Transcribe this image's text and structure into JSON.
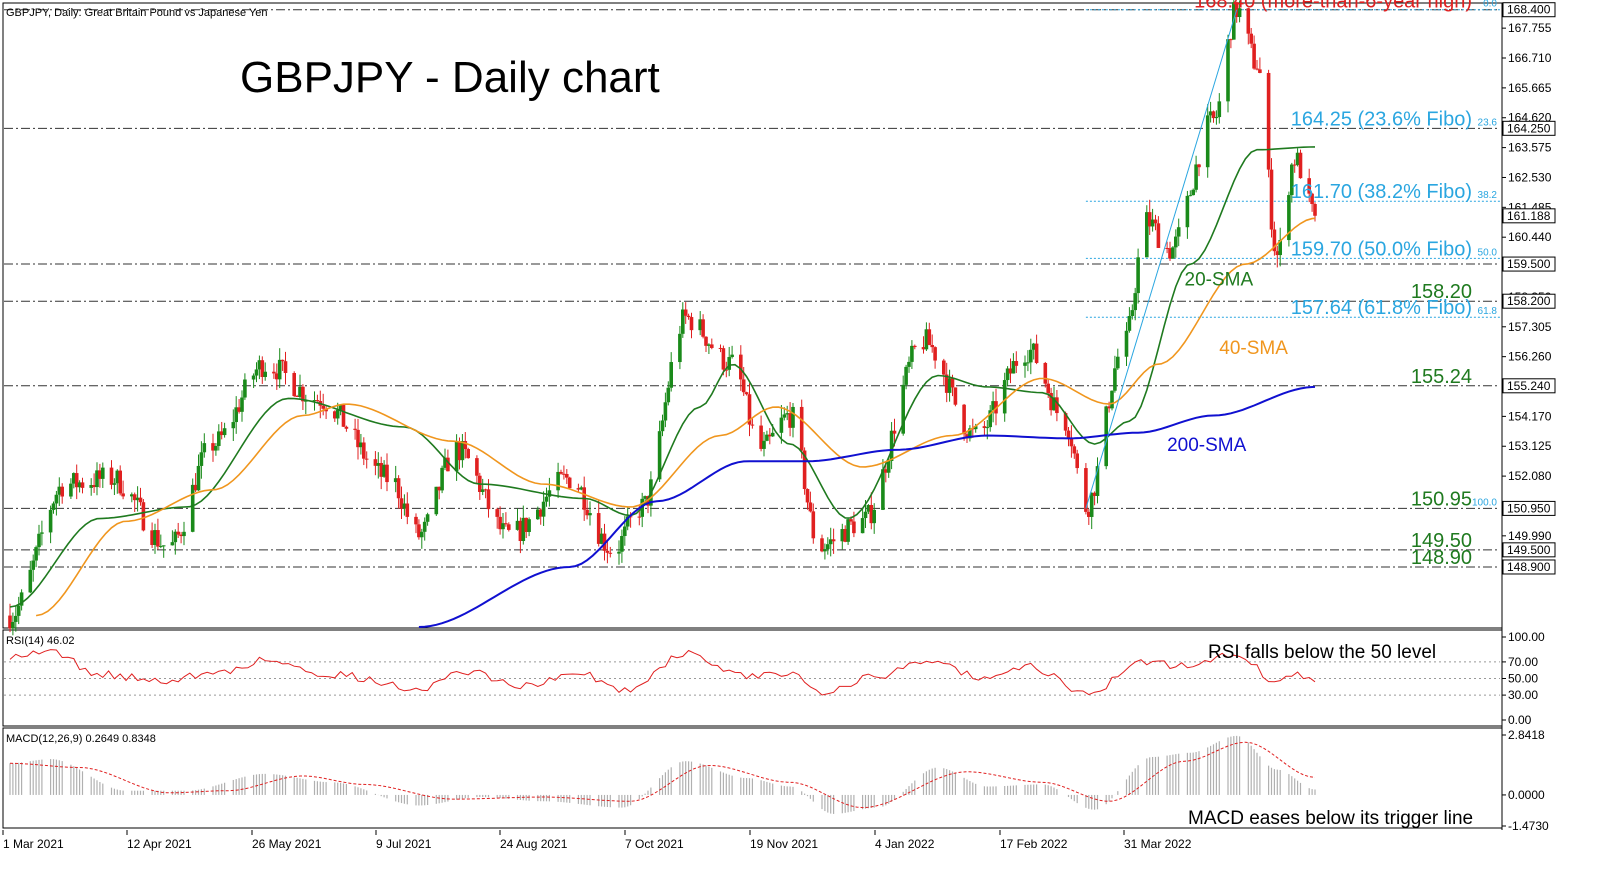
{
  "header": {
    "instrument_caption": "GBPJPY, Daily:  Great Britain Pound vs Japanese Yen",
    "chart_title": "GBPJPY - Daily chart"
  },
  "colors": {
    "bull": "#1a8a1a",
    "bear": "#e02020",
    "sma20": "#1f7a1f",
    "sma40": "#f0961e",
    "sma200": "#1010d0",
    "fibo": "#2aa6e0",
    "resistance_label": "#e02020",
    "support_label": "#1f7a1f",
    "rsi_line": "#e02020",
    "macd_hist": "#b0b0b0",
    "macd_signal": "#e02020"
  },
  "chart_data": [
    {
      "type": "candlestick",
      "title": "GBPJPY - Daily chart",
      "ylim": [
        146.8,
        168.6
      ],
      "price_ticks": [
        "167.755",
        "166.710",
        "165.665",
        "164.620",
        "163.575",
        "162.530",
        "161.485",
        "160.440",
        "159.395",
        "158.350",
        "157.305",
        "156.260",
        "155.215",
        "154.170",
        "153.125",
        "152.080",
        "151.035",
        "149.990",
        "148.945"
      ],
      "x_dates": [
        "1 Mar 2021",
        "12 Apr 2021",
        "26 May 2021",
        "9 Jul 2021",
        "24 Aug 2021",
        "7 Oct 2021",
        "19 Nov 2021",
        "4 Jan 2022",
        "17 Feb 2022",
        "31 Mar 2022"
      ],
      "close_keypoints": [
        {
          "date": "2021-03-01",
          "value": 147.2
        },
        {
          "date": "2021-03-20",
          "value": 151.8
        },
        {
          "date": "2021-04-05",
          "value": 152.0
        },
        {
          "date": "2021-04-25",
          "value": 149.6
        },
        {
          "date": "2021-05-10",
          "value": 153.2
        },
        {
          "date": "2021-05-28",
          "value": 156.0
        },
        {
          "date": "2021-06-15",
          "value": 154.8
        },
        {
          "date": "2021-07-10",
          "value": 152.0
        },
        {
          "date": "2021-07-20",
          "value": 150.0
        },
        {
          "date": "2021-08-02",
          "value": 153.0
        },
        {
          "date": "2021-08-20",
          "value": 150.0
        },
        {
          "date": "2021-09-10",
          "value": 152.0
        },
        {
          "date": "2021-09-25",
          "value": 149.5
        },
        {
          "date": "2021-10-05",
          "value": 151.0
        },
        {
          "date": "2021-10-20",
          "value": 157.6
        },
        {
          "date": "2021-11-05",
          "value": 156.0
        },
        {
          "date": "2021-11-15",
          "value": 153.0
        },
        {
          "date": "2021-11-25",
          "value": 154.2
        },
        {
          "date": "2021-12-05",
          "value": 149.6
        },
        {
          "date": "2021-12-20",
          "value": 150.5
        },
        {
          "date": "2022-01-10",
          "value": 156.8
        },
        {
          "date": "2022-01-28",
          "value": 153.5
        },
        {
          "date": "2022-02-15",
          "value": 156.5
        },
        {
          "date": "2022-02-28",
          "value": 154.0
        },
        {
          "date": "2022-03-07",
          "value": 151.0
        },
        {
          "date": "2022-03-20",
          "value": 156.6
        },
        {
          "date": "2022-03-28",
          "value": 161.0
        },
        {
          "date": "2022-04-05",
          "value": 160.0
        },
        {
          "date": "2022-04-20",
          "value": 164.5
        },
        {
          "date": "2022-04-28",
          "value": 168.4
        },
        {
          "date": "2022-05-05",
          "value": 166.5
        },
        {
          "date": "2022-05-12",
          "value": 159.8
        },
        {
          "date": "2022-05-18",
          "value": 163.2
        },
        {
          "date": "2022-05-25",
          "value": 161.19
        }
      ],
      "sma_series": [
        {
          "name": "20-SMA",
          "points": [
            {
              "date": "2021-03-01",
              "value": 147.5
            },
            {
              "date": "2021-04-01",
              "value": 150.6
            },
            {
              "date": "2021-05-01",
              "value": 151.0
            },
            {
              "date": "2021-06-05",
              "value": 154.8
            },
            {
              "date": "2021-07-15",
              "value": 153.8
            },
            {
              "date": "2021-08-10",
              "value": 151.8
            },
            {
              "date": "2021-09-15",
              "value": 151.3
            },
            {
              "date": "2021-10-01",
              "value": 150.7
            },
            {
              "date": "2021-10-25",
              "value": 154.5
            },
            {
              "date": "2021-11-05",
              "value": 156.0
            },
            {
              "date": "2021-11-25",
              "value": 153.2
            },
            {
              "date": "2021-12-15",
              "value": 150.6
            },
            {
              "date": "2022-01-15",
              "value": 155.6
            },
            {
              "date": "2022-02-01",
              "value": 155.2
            },
            {
              "date": "2022-02-20",
              "value": 155.0
            },
            {
              "date": "2022-03-10",
              "value": 153.2
            },
            {
              "date": "2022-03-22",
              "value": 154.0
            },
            {
              "date": "2022-04-12",
              "value": 159.5
            },
            {
              "date": "2022-05-05",
              "value": 163.5
            },
            {
              "date": "2022-05-25",
              "value": 163.6
            }
          ]
        },
        {
          "name": "40-SMA",
          "points": [
            {
              "date": "2021-03-10",
              "value": 147.2
            },
            {
              "date": "2021-04-10",
              "value": 150.5
            },
            {
              "date": "2021-05-10",
              "value": 151.6
            },
            {
              "date": "2021-06-10",
              "value": 154.2
            },
            {
              "date": "2021-06-25",
              "value": 154.6
            },
            {
              "date": "2021-08-01",
              "value": 153.3
            },
            {
              "date": "2021-09-01",
              "value": 151.8
            },
            {
              "date": "2021-10-01",
              "value": 151.0
            },
            {
              "date": "2021-11-01",
              "value": 153.5
            },
            {
              "date": "2021-11-20",
              "value": 154.5
            },
            {
              "date": "2021-12-20",
              "value": 152.4
            },
            {
              "date": "2022-01-20",
              "value": 153.5
            },
            {
              "date": "2022-02-20",
              "value": 155.5
            },
            {
              "date": "2022-03-15",
              "value": 154.6
            },
            {
              "date": "2022-04-01",
              "value": 156.0
            },
            {
              "date": "2022-05-01",
              "value": 159.5
            },
            {
              "date": "2022-05-25",
              "value": 161.1
            }
          ]
        },
        {
          "name": "200-SMA",
          "points": [
            {
              "date": "2021-07-20",
              "value": 146.8
            },
            {
              "date": "2021-09-10",
              "value": 148.9
            },
            {
              "date": "2021-10-10",
              "value": 151.2
            },
            {
              "date": "2021-11-10",
              "value": 152.6
            },
            {
              "date": "2021-12-01",
              "value": 152.6
            },
            {
              "date": "2022-01-01",
              "value": 153.0
            },
            {
              "date": "2022-02-01",
              "value": 153.5
            },
            {
              "date": "2022-03-01",
              "value": 153.4
            },
            {
              "date": "2022-03-25",
              "value": 153.6
            },
            {
              "date": "2022-04-20",
              "value": 154.2
            },
            {
              "date": "2022-05-25",
              "value": 155.2
            }
          ]
        }
      ],
      "horizontal_levels": [
        {
          "label": "168.40 (more-than-6-year high)",
          "value": 168.4,
          "style": "dash-dot",
          "label_color": "#e02020"
        },
        {
          "label": "164.25 (23.6% Fibo)",
          "value": 164.25,
          "style": "dash-dot",
          "label_color": "#2aa6e0",
          "fibo_tag": "23.6"
        },
        {
          "label": "161.70 (38.2% Fibo)",
          "value": 161.7,
          "style": "fibo",
          "label_color": "#2aa6e0",
          "fibo_tag": "38.2"
        },
        {
          "label": "159.70 (50.0% Fibo)",
          "value": 159.7,
          "style": "fibo",
          "label_color": "#2aa6e0",
          "fibo_tag": "50.0"
        },
        {
          "label": "",
          "value": 159.5,
          "style": "dash-dot"
        },
        {
          "label": "158.20",
          "value": 158.2,
          "style": "dash-dot",
          "label_color": "#1f7a1f"
        },
        {
          "label": "157.64 (61.8% Fibo)",
          "value": 157.64,
          "style": "fibo",
          "label_color": "#2aa6e0",
          "fibo_tag": "61.8"
        },
        {
          "label": "155.24",
          "value": 155.24,
          "style": "dash-dot",
          "label_color": "#1f7a1f"
        },
        {
          "label": "150.95",
          "value": 150.95,
          "style": "dash-dot",
          "label_color": "#1f7a1f",
          "fibo_tag": "100.0"
        },
        {
          "label": "149.50",
          "value": 149.5,
          "style": "dash-dot",
          "label_color": "#1f7a1f"
        },
        {
          "label": "148.90",
          "value": 148.9,
          "style": "dash-dot",
          "label_color": "#1f7a1f"
        }
      ],
      "axis_badges": [
        "168.400",
        "164.250",
        "161.188",
        "159.500",
        "158.200",
        "155.240",
        "150.950",
        "149.500",
        "148.900"
      ],
      "top_fibo_tag": "0.0",
      "sma_labels": [
        "20-SMA",
        "40-SMA",
        "200-SMA"
      ],
      "fibo_trend_from": {
        "date": "2022-03-07",
        "value": 150.95
      },
      "fibo_trend_to": {
        "date": "2022-04-28",
        "value": 168.4
      }
    },
    {
      "type": "line",
      "title": "RSI(14) 46.02",
      "ylim": [
        0,
        100
      ],
      "y_ticks": [
        "100.00",
        "70.00",
        "50.00",
        "30.00",
        "0.00"
      ],
      "annotation": "RSI falls below the 50 level",
      "keypoints": [
        {
          "date": "2021-03-01",
          "value": 78
        },
        {
          "date": "2021-03-15",
          "value": 82
        },
        {
          "date": "2021-04-01",
          "value": 55
        },
        {
          "date": "2021-04-20",
          "value": 48
        },
        {
          "date": "2021-05-10",
          "value": 55
        },
        {
          "date": "2021-05-28",
          "value": 72
        },
        {
          "date": "2021-06-20",
          "value": 55
        },
        {
          "date": "2021-07-20",
          "value": 38
        },
        {
          "date": "2021-08-05",
          "value": 58
        },
        {
          "date": "2021-08-25",
          "value": 42
        },
        {
          "date": "2021-09-15",
          "value": 55
        },
        {
          "date": "2021-09-28",
          "value": 35
        },
        {
          "date": "2021-10-20",
          "value": 80
        },
        {
          "date": "2021-11-10",
          "value": 52
        },
        {
          "date": "2021-11-25",
          "value": 58
        },
        {
          "date": "2021-12-05",
          "value": 35
        },
        {
          "date": "2021-12-25",
          "value": 52
        },
        {
          "date": "2022-01-12",
          "value": 73
        },
        {
          "date": "2022-02-01",
          "value": 48
        },
        {
          "date": "2022-02-15",
          "value": 65
        },
        {
          "date": "2022-03-07",
          "value": 33
        },
        {
          "date": "2022-03-28",
          "value": 70
        },
        {
          "date": "2022-04-10",
          "value": 65
        },
        {
          "date": "2022-04-28",
          "value": 80
        },
        {
          "date": "2022-05-12",
          "value": 44
        },
        {
          "date": "2022-05-18",
          "value": 56
        },
        {
          "date": "2022-05-25",
          "value": 46.02
        }
      ]
    },
    {
      "type": "bar",
      "title": "MACD(12,26,9) 0.2649 0.8348",
      "ylim": [
        -1.473,
        2.8418
      ],
      "y_ticks": [
        "2.8418",
        "0.0000",
        "-1.4730"
      ],
      "annotation": "MACD eases below its trigger line",
      "histogram_keypoints": [
        {
          "date": "2021-03-01",
          "value": 1.5
        },
        {
          "date": "2021-03-15",
          "value": 1.7
        },
        {
          "date": "2021-04-10",
          "value": 0.2
        },
        {
          "date": "2021-05-01",
          "value": 0.2
        },
        {
          "date": "2021-05-28",
          "value": 1.0
        },
        {
          "date": "2021-06-20",
          "value": 0.6
        },
        {
          "date": "2021-07-20",
          "value": -0.5
        },
        {
          "date": "2021-08-10",
          "value": -0.1
        },
        {
          "date": "2021-09-01",
          "value": -0.3
        },
        {
          "date": "2021-09-28",
          "value": -0.6
        },
        {
          "date": "2021-10-20",
          "value": 1.6
        },
        {
          "date": "2021-11-10",
          "value": 0.8
        },
        {
          "date": "2021-11-25",
          "value": 0.4
        },
        {
          "date": "2021-12-10",
          "value": -0.9
        },
        {
          "date": "2021-12-25",
          "value": -0.6
        },
        {
          "date": "2022-01-15",
          "value": 1.3
        },
        {
          "date": "2022-02-01",
          "value": 0.4
        },
        {
          "date": "2022-02-20",
          "value": 0.5
        },
        {
          "date": "2022-03-10",
          "value": -0.7
        },
        {
          "date": "2022-03-30",
          "value": 1.8
        },
        {
          "date": "2022-04-12",
          "value": 2.0
        },
        {
          "date": "2022-04-28",
          "value": 2.8
        },
        {
          "date": "2022-05-12",
          "value": 1.2
        },
        {
          "date": "2022-05-25",
          "value": 0.26
        }
      ],
      "signal_keypoints": [
        {
          "date": "2021-03-01",
          "value": 1.5
        },
        {
          "date": "2021-03-25",
          "value": 1.3
        },
        {
          "date": "2021-04-25",
          "value": 0.1
        },
        {
          "date": "2021-05-15",
          "value": 0.2
        },
        {
          "date": "2021-06-10",
          "value": 0.9
        },
        {
          "date": "2021-07-01",
          "value": 0.5
        },
        {
          "date": "2021-08-01",
          "value": -0.2
        },
        {
          "date": "2021-09-01",
          "value": -0.1
        },
        {
          "date": "2021-10-01",
          "value": -0.3
        },
        {
          "date": "2021-10-28",
          "value": 1.4
        },
        {
          "date": "2021-11-25",
          "value": 0.6
        },
        {
          "date": "2021-12-20",
          "value": -0.6
        },
        {
          "date": "2022-01-25",
          "value": 1.1
        },
        {
          "date": "2022-02-20",
          "value": 0.6
        },
        {
          "date": "2022-03-15",
          "value": -0.3
        },
        {
          "date": "2022-04-10",
          "value": 1.6
        },
        {
          "date": "2022-05-01",
          "value": 2.5
        },
        {
          "date": "2022-05-25",
          "value": 0.83
        }
      ]
    }
  ]
}
